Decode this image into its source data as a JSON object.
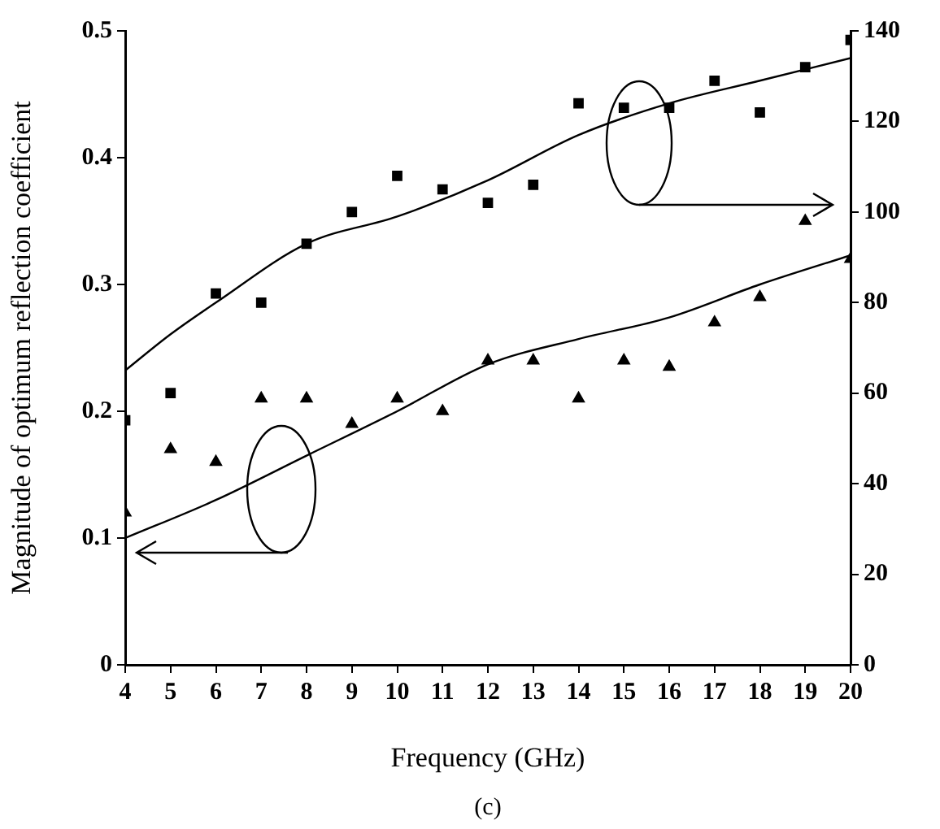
{
  "chart_data": {
    "type": "scatter",
    "xlabel": "Frequency (GHz)",
    "ylabel": "Magnitude of optimum reflection coefficient",
    "annotations": [
      "(c)"
    ],
    "xlim": [
      4,
      20
    ],
    "xticks": [
      4,
      5,
      6,
      7,
      8,
      9,
      10,
      11,
      12,
      13,
      14,
      15,
      16,
      17,
      18,
      19,
      20
    ],
    "ylim": [
      0,
      0.5
    ],
    "yticks": [
      0,
      0.1,
      0.2,
      0.3,
      0.4,
      0.5
    ],
    "y2lim": [
      0,
      140
    ],
    "y2ticks": [
      0,
      20,
      40,
      60,
      80,
      100,
      120,
      140
    ],
    "grid": false,
    "legend": false,
    "series": [
      {
        "type": "scatter",
        "marker": "square",
        "axis": "y2",
        "color": "#000000",
        "x": [
          4,
          5,
          6,
          7,
          8,
          9,
          10,
          11,
          12,
          13,
          14,
          15,
          16,
          17,
          18,
          19,
          20
        ],
        "values": [
          54,
          60,
          82,
          80,
          93,
          100,
          108,
          105,
          102,
          106,
          124,
          123,
          123,
          129,
          122,
          132,
          138
        ]
      },
      {
        "type": "line",
        "marker": "none",
        "axis": "y2",
        "color": "#000000",
        "x": [
          4,
          5,
          6,
          8,
          10,
          12,
          14,
          16,
          18,
          20
        ],
        "values": [
          65,
          73,
          80,
          93,
          99,
          107,
          117,
          124,
          129,
          134
        ]
      },
      {
        "type": "scatter",
        "marker": "triangle",
        "axis": "y",
        "color": "#000000",
        "x": [
          4,
          5,
          6,
          7,
          8,
          9,
          10,
          11,
          12,
          13,
          14,
          15,
          16,
          17,
          18,
          19,
          20
        ],
        "values": [
          0.12,
          0.17,
          0.16,
          0.21,
          0.21,
          0.19,
          0.21,
          0.2,
          0.24,
          0.24,
          0.21,
          0.24,
          0.235,
          0.27,
          0.29,
          0.35,
          0.32
        ]
      },
      {
        "type": "line",
        "marker": "none",
        "axis": "y",
        "color": "#000000",
        "x": [
          4,
          6,
          8,
          10,
          12,
          14,
          16,
          18,
          20
        ],
        "values": [
          0.1,
          0.13,
          0.165,
          0.2,
          0.237,
          0.257,
          0.274,
          0.3,
          0.323
        ]
      }
    ]
  }
}
